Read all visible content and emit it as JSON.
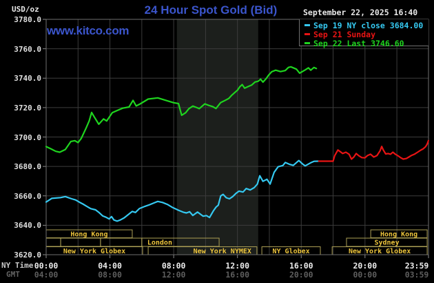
{
  "header": {
    "unit_label": "USD/oz",
    "title": "24 Hour Spot Gold (Bid)",
    "watermark": "www.kitco.com",
    "timestamp": "September 22, 2025 16:40"
  },
  "legend": {
    "items": [
      {
        "label": "Sep 19 NY close 3684.00"
      },
      {
        "label": "Sep 21 Sunday"
      },
      {
        "label": "Sep 22 Last 3746.60"
      }
    ]
  },
  "axes": {
    "x_row1_label": "NY Time",
    "x_row2_label": "GMT",
    "x_row1": [
      "00:00",
      "04:00",
      "08:00",
      "12:00",
      "16:00",
      "20:00",
      "23:59"
    ],
    "x_row2": [
      "04:00",
      "08:00",
      "12:00",
      "16:00",
      "20:00",
      "00:00",
      "03:59"
    ],
    "y_ticks": [
      3780,
      3760,
      3740,
      3720,
      3700,
      3680,
      3660,
      3640,
      3620
    ]
  },
  "sessions": {
    "rows": [
      {
        "name": "asia",
        "boxes": [
          {
            "label": "Hong Kong",
            "start": 0,
            "end": 5.4
          },
          {
            "label": "Hong Kong",
            "start": 20.36,
            "end": 23.9
          }
        ]
      },
      {
        "name": "europe",
        "boxes": [
          {
            "label": "",
            "start": 0,
            "end": 0.91
          },
          {
            "label": "",
            "start": 0.91,
            "end": 3.41
          },
          {
            "label": "",
            "start": 3.41,
            "end": 6.0
          },
          {
            "label": "London",
            "start": 6.0,
            "end": 10.85,
            "align": "left"
          },
          {
            "label": "Sydney",
            "start": 18.84,
            "end": 23.9
          }
        ]
      },
      {
        "name": "us",
        "boxes": [
          {
            "label": "New York Globex",
            "start": 0,
            "end": 6.05
          },
          {
            "label": "New York NYMEX",
            "start": 6.4,
            "end": 13.22,
            "align": "right"
          },
          {
            "label": "NY Globex",
            "start": 13.53,
            "end": 17.2
          },
          {
            "label": "New York Globex",
            "start": 17.94,
            "end": 23.9
          }
        ]
      }
    ]
  },
  "chart_data": {
    "type": "line",
    "title": "24 Hour Spot Gold (Bid)",
    "x_unit": "hours_ny_time",
    "x_range": [
      0,
      23.983
    ],
    "y_range": [
      3620,
      3780
    ],
    "y_tick_step": 20,
    "x_gridline_step_hours": 2,
    "x_tick_hours": [
      0,
      4,
      8,
      12,
      16,
      20,
      23.983
    ],
    "highlight_band_hours": [
      8.2,
      13.3
    ],
    "series": [
      {
        "name": "Sep 19 NY close",
        "close": 3684.0,
        "color": "#35c8f0",
        "points": [
          [
            0,
            3655.8
          ],
          [
            0.35,
            3658.3
          ],
          [
            0.9,
            3658.8
          ],
          [
            1.2,
            3659.5
          ],
          [
            1.6,
            3658
          ],
          [
            1.85,
            3657.2
          ],
          [
            2.1,
            3655.6
          ],
          [
            2.3,
            3654.5
          ],
          [
            2.6,
            3652.5
          ],
          [
            2.8,
            3651.3
          ],
          [
            3.1,
            3650.5
          ],
          [
            3.3,
            3648.8
          ],
          [
            3.55,
            3646.3
          ],
          [
            3.75,
            3645.5
          ],
          [
            3.95,
            3644.3
          ],
          [
            4.1,
            3645.9
          ],
          [
            4.25,
            3643.6
          ],
          [
            4.45,
            3642.8
          ],
          [
            4.65,
            3643.6
          ],
          [
            4.9,
            3645.1
          ],
          [
            5.2,
            3647.7
          ],
          [
            5.4,
            3649.4
          ],
          [
            5.6,
            3648.7
          ],
          [
            5.85,
            3651.4
          ],
          [
            6.2,
            3652.9
          ],
          [
            6.5,
            3654
          ],
          [
            6.8,
            3655.4
          ],
          [
            7.0,
            3656.2
          ],
          [
            7.3,
            3655.5
          ],
          [
            7.6,
            3654.2
          ],
          [
            7.9,
            3652.3
          ],
          [
            8.3,
            3650.2
          ],
          [
            8.6,
            3648.9
          ],
          [
            8.8,
            3648.4
          ],
          [
            9.0,
            3649.2
          ],
          [
            9.2,
            3646.7
          ],
          [
            9.5,
            3649
          ],
          [
            9.85,
            3646.2
          ],
          [
            10.05,
            3646.6
          ],
          [
            10.25,
            3645.3
          ],
          [
            10.5,
            3650
          ],
          [
            10.65,
            3652.3
          ],
          [
            10.8,
            3653.7
          ],
          [
            10.95,
            3660
          ],
          [
            11.1,
            3661
          ],
          [
            11.3,
            3658.7
          ],
          [
            11.5,
            3658
          ],
          [
            11.7,
            3659.5
          ],
          [
            11.9,
            3661.6
          ],
          [
            12.1,
            3663.2
          ],
          [
            12.35,
            3662.6
          ],
          [
            12.55,
            3665
          ],
          [
            12.8,
            3664
          ],
          [
            13.05,
            3665.6
          ],
          [
            13.25,
            3668
          ],
          [
            13.4,
            3673.7
          ],
          [
            13.6,
            3669.9
          ],
          [
            13.85,
            3671.3
          ],
          [
            14.05,
            3668
          ],
          [
            14.3,
            3676
          ],
          [
            14.55,
            3679.8
          ],
          [
            14.85,
            3680.6
          ],
          [
            15.0,
            3682.7
          ],
          [
            15.25,
            3681.5
          ],
          [
            15.5,
            3680.7
          ],
          [
            15.85,
            3684
          ],
          [
            16.1,
            3681.5
          ],
          [
            16.25,
            3680.4
          ],
          [
            16.6,
            3682.5
          ],
          [
            16.8,
            3683.5
          ],
          [
            17.1,
            3683.6
          ]
        ]
      },
      {
        "name": "Sep 21 Sunday",
        "color": "#e81414",
        "points": [
          [
            17.1,
            3683.6
          ],
          [
            18.0,
            3683.6
          ],
          [
            18.1,
            3687.4
          ],
          [
            18.3,
            3691.2
          ],
          [
            18.45,
            3690
          ],
          [
            18.6,
            3688.8
          ],
          [
            18.8,
            3689.7
          ],
          [
            19.0,
            3688.3
          ],
          [
            19.15,
            3685
          ],
          [
            19.3,
            3686.4
          ],
          [
            19.45,
            3688.8
          ],
          [
            19.6,
            3687.4
          ],
          [
            19.8,
            3686
          ],
          [
            20.0,
            3685.9
          ],
          [
            20.15,
            3687.4
          ],
          [
            20.35,
            3688.3
          ],
          [
            20.55,
            3686.4
          ],
          [
            20.75,
            3687.4
          ],
          [
            20.95,
            3690.7
          ],
          [
            21.05,
            3693.6
          ],
          [
            21.15,
            3691.2
          ],
          [
            21.3,
            3688.5
          ],
          [
            21.45,
            3688.8
          ],
          [
            21.6,
            3688.3
          ],
          [
            21.75,
            3689.7
          ],
          [
            21.9,
            3688.3
          ],
          [
            22.05,
            3687.4
          ],
          [
            22.25,
            3685.9
          ],
          [
            22.4,
            3685
          ],
          [
            22.6,
            3685.4
          ],
          [
            22.75,
            3686.4
          ],
          [
            22.9,
            3687.4
          ],
          [
            23.1,
            3688.3
          ],
          [
            23.3,
            3689.7
          ],
          [
            23.5,
            3691.1
          ],
          [
            23.65,
            3692
          ],
          [
            23.8,
            3693.4
          ],
          [
            23.9,
            3695.2
          ],
          [
            23.98,
            3697.5
          ]
        ]
      },
      {
        "name": "Sep 22 Last",
        "last": 3746.6,
        "color": "#1fd41f",
        "points": [
          [
            0,
            3693.5
          ],
          [
            0.3,
            3692
          ],
          [
            0.6,
            3690.3
          ],
          [
            0.85,
            3689.7
          ],
          [
            1.2,
            3691.5
          ],
          [
            1.55,
            3697
          ],
          [
            1.8,
            3697.5
          ],
          [
            2.0,
            3696.2
          ],
          [
            2.2,
            3699
          ],
          [
            2.5,
            3706
          ],
          [
            2.7,
            3711
          ],
          [
            2.85,
            3716.7
          ],
          [
            3.0,
            3714
          ],
          [
            3.3,
            3708.7
          ],
          [
            3.6,
            3712.3
          ],
          [
            3.8,
            3710.9
          ],
          [
            4.15,
            3716.5
          ],
          [
            4.45,
            3718
          ],
          [
            4.8,
            3719.6
          ],
          [
            5.2,
            3720.4
          ],
          [
            5.45,
            3724.9
          ],
          [
            5.65,
            3721.1
          ],
          [
            5.9,
            3722.5
          ],
          [
            6.4,
            3725.8
          ],
          [
            7.0,
            3726.6
          ],
          [
            7.6,
            3724.6
          ],
          [
            8.0,
            3723.3
          ],
          [
            8.3,
            3722.7
          ],
          [
            8.5,
            3714.8
          ],
          [
            8.75,
            3716.5
          ],
          [
            8.95,
            3719.2
          ],
          [
            9.2,
            3721
          ],
          [
            9.45,
            3720
          ],
          [
            9.6,
            3719.3
          ],
          [
            9.95,
            3722.5
          ],
          [
            10.2,
            3721.5
          ],
          [
            10.45,
            3720.7
          ],
          [
            10.65,
            3719.4
          ],
          [
            10.95,
            3723.4
          ],
          [
            11.25,
            3725
          ],
          [
            11.45,
            3726.2
          ],
          [
            11.65,
            3728.5
          ],
          [
            11.85,
            3730.4
          ],
          [
            12.0,
            3731.8
          ],
          [
            12.15,
            3734.2
          ],
          [
            12.3,
            3735.6
          ],
          [
            12.45,
            3733.2
          ],
          [
            12.65,
            3734.2
          ],
          [
            12.9,
            3735.4
          ],
          [
            13.1,
            3737.4
          ],
          [
            13.3,
            3737.9
          ],
          [
            13.45,
            3739.3
          ],
          [
            13.6,
            3737.3
          ],
          [
            13.8,
            3739.7
          ],
          [
            13.95,
            3742
          ],
          [
            14.15,
            3744.4
          ],
          [
            14.4,
            3745.4
          ],
          [
            14.7,
            3744.5
          ],
          [
            15.0,
            3745.2
          ],
          [
            15.2,
            3747.3
          ],
          [
            15.35,
            3747.7
          ],
          [
            15.7,
            3746.1
          ],
          [
            15.9,
            3743.4
          ],
          [
            16.25,
            3745.6
          ],
          [
            16.45,
            3747
          ],
          [
            16.6,
            3745.4
          ],
          [
            16.8,
            3747.3
          ],
          [
            16.95,
            3746.6
          ]
        ]
      }
    ]
  },
  "colors": {
    "background": "#000000",
    "plot_border": "#707070",
    "grid": "#3c3c3c",
    "band": "#1c1f1c",
    "tick": "#8a8a8a",
    "session_border": "#ac9f55",
    "session_text": "#ecc43c"
  }
}
